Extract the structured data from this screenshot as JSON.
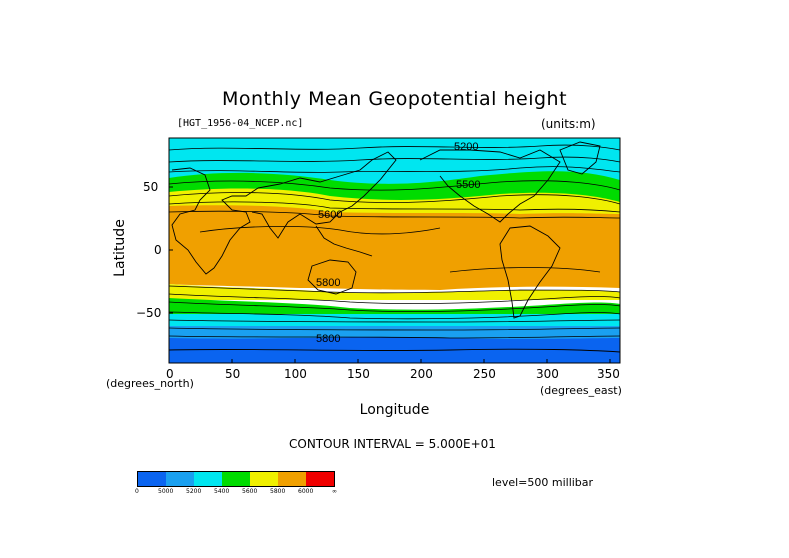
{
  "title": "Monthly Mean Geopotential height",
  "dataset_label": "[HGT_1956-04_NCEP.nc]",
  "units_label": "(units:m)",
  "y_axis": {
    "label": "Latitude",
    "units": "(degrees_north)",
    "ticks": [
      "50",
      "0",
      "−50"
    ]
  },
  "x_axis": {
    "label": "Longitude",
    "units": "(degrees_east)",
    "ticks": [
      "0",
      "50",
      "100",
      "150",
      "200",
      "250",
      "300",
      "350"
    ]
  },
  "contour_interval": "CONTOUR INTERVAL = 5.000E+01",
  "level": "level=500 millibar",
  "contour_labels": [
    "5200",
    "5500",
    "5600",
    "5800",
    "5800"
  ],
  "colorbar": {
    "colors": [
      "#0a64f0",
      "#1aa0f0",
      "#00e6f0",
      "#00dc00",
      "#f0f000",
      "#f0a000",
      "#f00000"
    ],
    "labels": [
      "0",
      "5000",
      "5200",
      "5400",
      "5600",
      "5800",
      "6000",
      "∞"
    ]
  },
  "bands": {
    "c_deep": "#0a64f0",
    "c_mid": "#1aa0f0",
    "c_cyan": "#00e6f0",
    "c_green": "#00dc00",
    "c_yellow": "#f0f000",
    "c_orange": "#f0a000"
  }
}
